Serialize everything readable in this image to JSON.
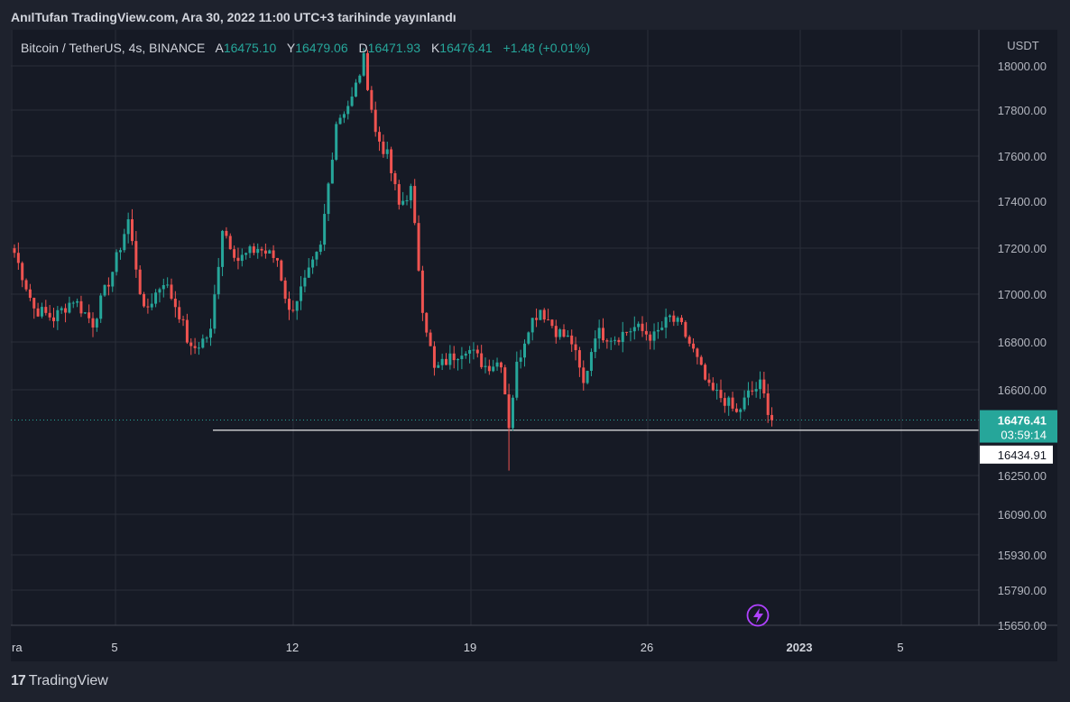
{
  "header": {
    "publisher_line": "AnılTufan TradingView.com, Ara 30, 2022 11:00 UTC+3 tarihinde yayınlandı"
  },
  "legend": {
    "symbol": "Bitcoin / TetherUS, 4s, BINANCE",
    "open_label": "A",
    "open": "16475.10",
    "high_label": "Y",
    "high": "16479.06",
    "low_label": "D",
    "low": "16471.93",
    "close_label": "K",
    "close": "16476.41",
    "change": "+1.48 (+0.01%)"
  },
  "footer": {
    "brand": "TradingView",
    "logo_glyph": "17"
  },
  "colors": {
    "up": "#26a69a",
    "down": "#ef5350",
    "grid": "#2a2e39",
    "background": "#161a25",
    "axis_text": "#b2b5be",
    "price_tag": "#26a69a",
    "marker": "#b042ff"
  },
  "chart_data": {
    "type": "candlestick",
    "title": "Bitcoin / TetherUS, 4s, BINANCE",
    "currency": "USDT",
    "x_ticks": [
      "ra",
      "5",
      "12",
      "19",
      "26",
      "2023",
      "5"
    ],
    "y_ticks": [
      "18000.00",
      "17800.00",
      "17600.00",
      "17400.00",
      "17200.00",
      "17000.00",
      "16800.00",
      "16600.00",
      "16250.00",
      "16090.00",
      "15930.00",
      "15790.00",
      "15650.00"
    ],
    "last_price": "16476.41",
    "countdown": "03:59:14",
    "horizontal_line": "16434.91",
    "event_icon": "lightning-icon",
    "anchors": [
      {
        "c": 0,
        "p": 17180
      },
      {
        "c": 5,
        "p": 16940
      },
      {
        "c": 10,
        "p": 16900
      },
      {
        "c": 15,
        "p": 16980
      },
      {
        "c": 20,
        "p": 16880
      },
      {
        "c": 25,
        "p": 17100
      },
      {
        "c": 29,
        "p": 17320
      },
      {
        "c": 33,
        "p": 16920
      },
      {
        "c": 38,
        "p": 17060
      },
      {
        "c": 42,
        "p": 16920
      },
      {
        "c": 45,
        "p": 16760
      },
      {
        "c": 50,
        "p": 16840
      },
      {
        "c": 53,
        "p": 17290
      },
      {
        "c": 57,
        "p": 17150
      },
      {
        "c": 62,
        "p": 17200
      },
      {
        "c": 67,
        "p": 17150
      },
      {
        "c": 70,
        "p": 16920
      },
      {
        "c": 74,
        "p": 17050
      },
      {
        "c": 78,
        "p": 17200
      },
      {
        "c": 82,
        "p": 17750
      },
      {
        "c": 86,
        "p": 17850
      },
      {
        "c": 89,
        "p": 18030
      },
      {
        "c": 92,
        "p": 17700
      },
      {
        "c": 95,
        "p": 17600
      },
      {
        "c": 98,
        "p": 17380
      },
      {
        "c": 101,
        "p": 17450
      },
      {
        "c": 104,
        "p": 16950
      },
      {
        "c": 107,
        "p": 16680
      },
      {
        "c": 110,
        "p": 16720
      },
      {
        "c": 115,
        "p": 16780
      },
      {
        "c": 120,
        "p": 16700
      },
      {
        "c": 124,
        "p": 16720
      },
      {
        "c": 126,
        "p": 16460
      },
      {
        "c": 128,
        "p": 16700
      },
      {
        "c": 131,
        "p": 16870
      },
      {
        "c": 134,
        "p": 16940
      },
      {
        "c": 138,
        "p": 16850
      },
      {
        "c": 142,
        "p": 16800
      },
      {
        "c": 145,
        "p": 16620
      },
      {
        "c": 148,
        "p": 16840
      },
      {
        "c": 153,
        "p": 16820
      },
      {
        "c": 158,
        "p": 16860
      },
      {
        "c": 163,
        "p": 16820
      },
      {
        "c": 167,
        "p": 16900
      },
      {
        "c": 170,
        "p": 16860
      },
      {
        "c": 173,
        "p": 16760
      },
      {
        "c": 177,
        "p": 16600
      },
      {
        "c": 181,
        "p": 16560
      },
      {
        "c": 184,
        "p": 16500
      },
      {
        "c": 187,
        "p": 16580
      },
      {
        "c": 190,
        "p": 16620
      },
      {
        "c": 193,
        "p": 16476
      }
    ]
  }
}
